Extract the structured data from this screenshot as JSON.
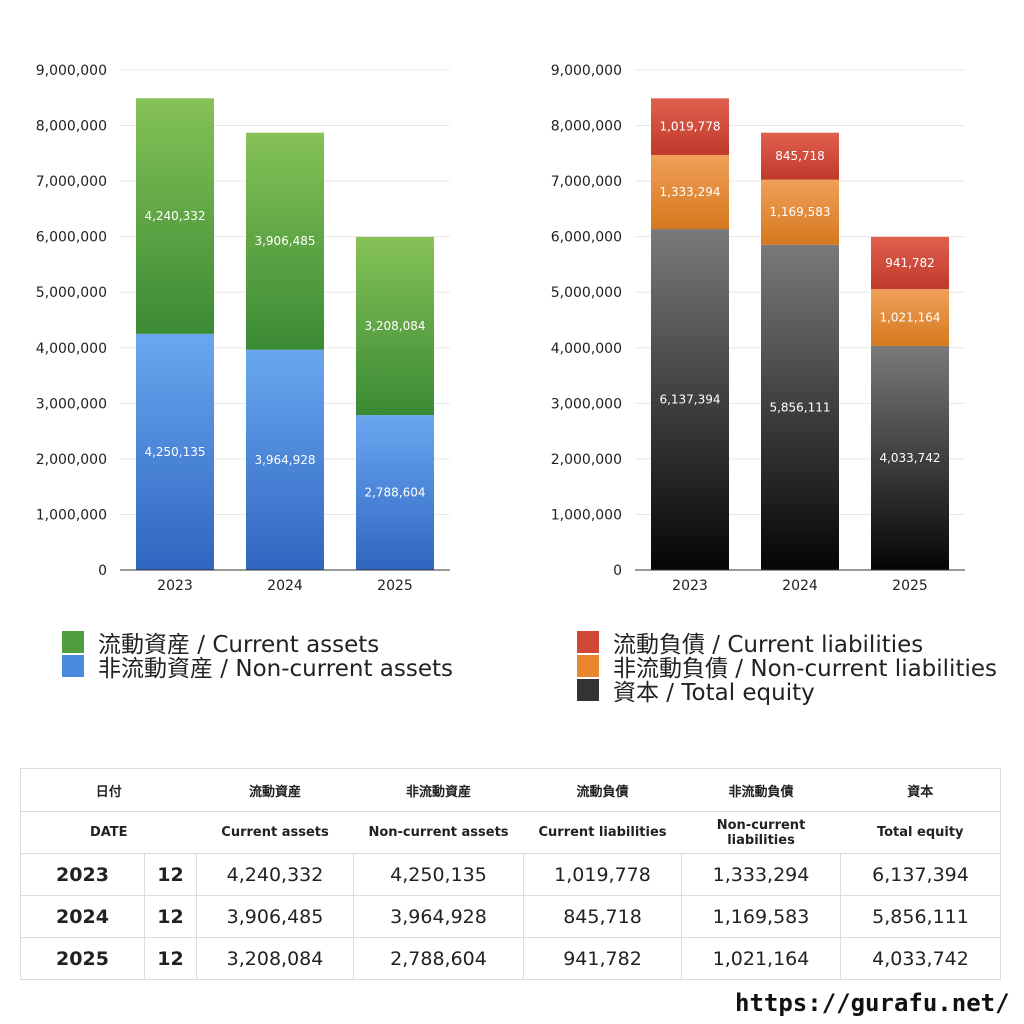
{
  "chart_data": [
    {
      "type": "bar",
      "stacked": true,
      "categories": [
        "2023",
        "2024",
        "2025"
      ],
      "series": [
        {
          "name": "非流動資産 / Non-current assets",
          "values": [
            4250135,
            3964928,
            2788604
          ],
          "color_top": "#6aa7f0",
          "color_bottom": "#2f66c0"
        },
        {
          "name": "流動資産 / Current assets",
          "values": [
            4240332,
            3906485,
            3208084
          ],
          "color_top": "#86c257",
          "color_bottom": "#3a8a34"
        }
      ],
      "ylim": [
        0,
        9000000
      ],
      "yticks": [
        "0",
        "1,000,000",
        "2,000,000",
        "3,000,000",
        "4,000,000",
        "5,000,000",
        "6,000,000",
        "7,000,000",
        "8,000,000",
        "9,000,000"
      ],
      "data_labels": [
        [
          "4,250,135",
          "3,964,928",
          "2,788,604"
        ],
        [
          "4,240,332",
          "3,906,485",
          "3,208,084"
        ]
      ],
      "grid": true,
      "legend_position": "bottom"
    },
    {
      "type": "bar",
      "stacked": true,
      "categories": [
        "2023",
        "2024",
        "2025"
      ],
      "series": [
        {
          "name": "資本 / Total equity",
          "values": [
            6137394,
            5856111,
            4033742
          ],
          "color_top": "#7a7a7a",
          "color_bottom": "#050505"
        },
        {
          "name": "非流動負債 / Non-current liabilities",
          "values": [
            1333294,
            1169583,
            1021164
          ],
          "color_top": "#f0a05a",
          "color_bottom": "#d6781e"
        },
        {
          "name": "流動負債 / Current liabilities",
          "values": [
            1019778,
            845718,
            941782
          ],
          "color_top": "#e0604e",
          "color_bottom": "#c0392b"
        }
      ],
      "ylim": [
        0,
        9000000
      ],
      "yticks": [
        "0",
        "1,000,000",
        "2,000,000",
        "3,000,000",
        "4,000,000",
        "5,000,000",
        "6,000,000",
        "7,000,000",
        "8,000,000",
        "9,000,000"
      ],
      "data_labels": [
        [
          "6,137,394",
          "5,856,111",
          "4,033,742"
        ],
        [
          "1,333,294",
          "1,169,583",
          "1,021,164"
        ],
        [
          "1,019,778",
          "845,718",
          "941,782"
        ]
      ],
      "grid": true,
      "legend_position": "bottom"
    }
  ],
  "legend_left": [
    {
      "label": "流動資産 / Current assets",
      "color": "#4e9e3f"
    },
    {
      "label": "非流動資産 / Non-current assets",
      "color": "#4a8be0"
    }
  ],
  "legend_right": [
    {
      "label": "流動負債 / Current liabilities",
      "color": "#d14836"
    },
    {
      "label": "非流動負債 / Non-current liabilities",
      "color": "#e8872e"
    },
    {
      "label": "資本 / Total equity",
      "color": "#333333"
    }
  ],
  "table": {
    "header_ja": [
      "日付",
      "流動資産",
      "非流動資産",
      "流動負債",
      "非流動負債",
      "資本"
    ],
    "header_en": [
      "DATE",
      "Current assets",
      "Non-current assets",
      "Current liabilities",
      "Non-current liabilities",
      "Total equity"
    ],
    "rows": [
      {
        "year": "2023",
        "month": "12",
        "values": [
          "4,240,332",
          "4,250,135",
          "1,019,778",
          "1,333,294",
          "6,137,394"
        ]
      },
      {
        "year": "2024",
        "month": "12",
        "values": [
          "3,906,485",
          "3,964,928",
          "845,718",
          "1,169,583",
          "5,856,111"
        ]
      },
      {
        "year": "2025",
        "month": "12",
        "values": [
          "3,208,084",
          "2,788,604",
          "941,782",
          "1,021,164",
          "4,033,742"
        ]
      }
    ]
  },
  "site": "https://gurafu.net/"
}
